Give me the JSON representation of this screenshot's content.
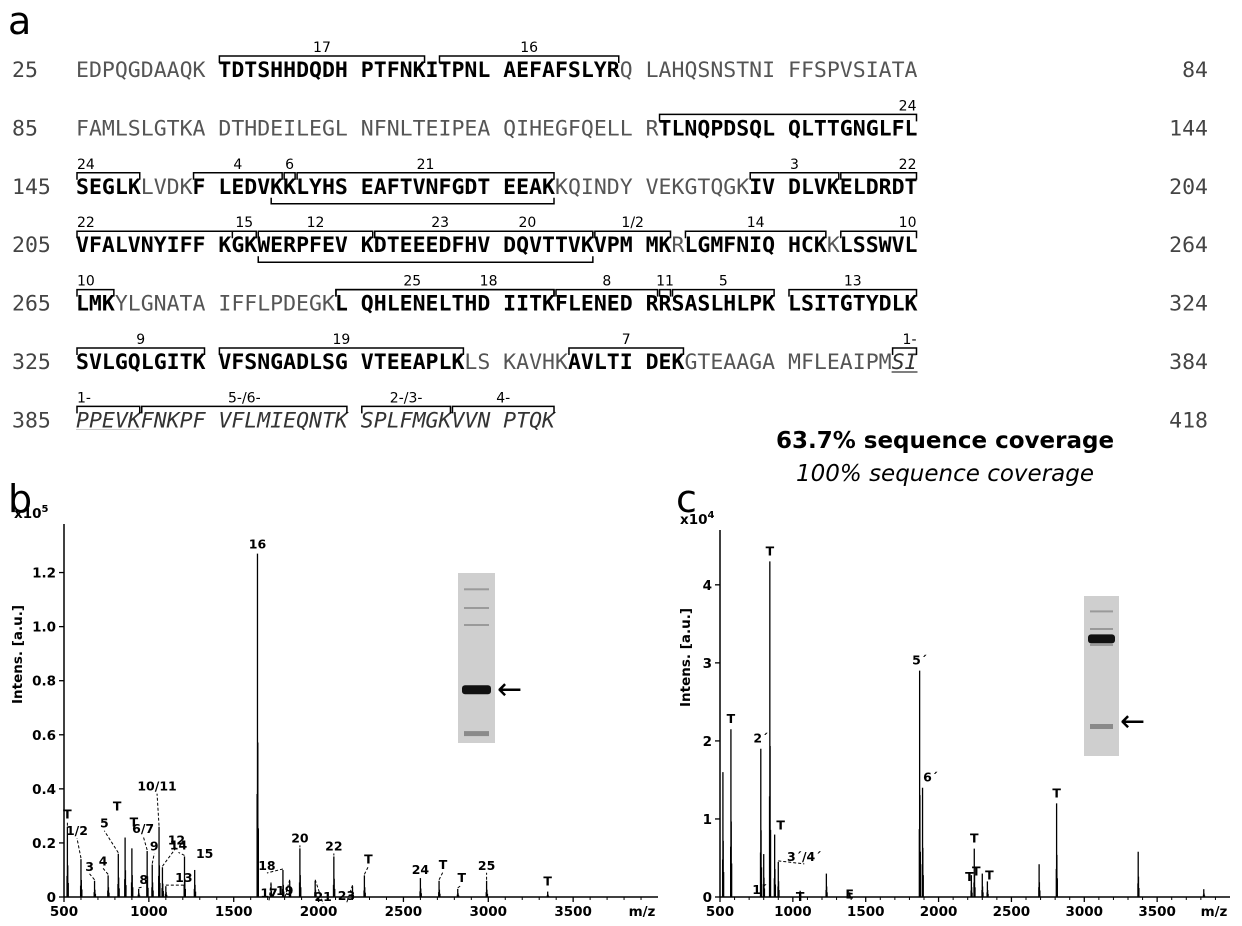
{
  "panel_a": {
    "letter": "a",
    "rows": [
      {
        "start": "25",
        "end": "84",
        "blocks": [
          [
            [
              "EDPQGDAAQK",
              "n"
            ]
          ],
          [
            [
              "TDTSHHDQDH",
              "b"
            ]
          ],
          [
            [
              "PTFNK",
              "b"
            ],
            [
              "ITPNL",
              "b"
            ]
          ],
          [
            [
              "AEFAFSLYR",
              "b"
            ],
            [
              "Q",
              "n"
            ]
          ],
          [
            [
              "LAHQSNSTNI",
              "n"
            ]
          ],
          [
            [
              "FFSPVSIATA",
              "n"
            ]
          ]
        ],
        "brackets": [
          {
            "label": "17",
            "from": 10,
            "to": 24,
            "side": "top"
          },
          {
            "label": "16",
            "from": 26,
            "to": 38,
            "side": "top"
          }
        ]
      },
      {
        "start": "85",
        "end": "144",
        "blocks": [
          [
            [
              "FAMLSLGTKA",
              "n"
            ]
          ],
          [
            [
              "DTHDEILEGL",
              "n"
            ]
          ],
          [
            [
              "NFNLTEIPEA",
              "n"
            ]
          ],
          [
            [
              "QIHEGFQELL",
              "n"
            ]
          ],
          [
            [
              "R",
              "n"
            ],
            [
              "TLNQPDSQL",
              "b"
            ]
          ],
          [
            [
              "QLTTGNGLFL",
              "b"
            ]
          ]
        ],
        "brackets": [
          {
            "label": "24",
            "from": 41,
            "to": 59,
            "side": "top",
            "labelAt": "end"
          }
        ]
      },
      {
        "start": "145",
        "end": "204",
        "blocks": [
          [
            [
              "SEGLK",
              "b"
            ],
            [
              "LVDK",
              "n"
            ],
            [
              "F",
              "b"
            ]
          ],
          [
            [
              "LEDVKKLYHS",
              "b"
            ]
          ],
          [
            [
              "EAFTVNFGDT",
              "b"
            ]
          ],
          [
            [
              "EEAK",
              "b"
            ],
            [
              "KQINDY",
              "n"
            ]
          ],
          [
            [
              "VEKGTQGK",
              "n"
            ],
            [
              "IV",
              "b"
            ]
          ],
          [
            [
              "DLVKELDRDT",
              "b"
            ]
          ]
        ],
        "brackets": [
          {
            "label": "24",
            "from": 0,
            "to": 4,
            "side": "top",
            "labelAt": "start"
          },
          {
            "label": "4",
            "from": 9,
            "to": 14,
            "side": "top"
          },
          {
            "label": "6",
            "from": 15,
            "to": 15,
            "side": "top"
          },
          {
            "label": "21",
            "from": 16,
            "to": 33,
            "side": "top"
          },
          {
            "label": "",
            "from": 14,
            "to": 33,
            "side": "bottom"
          },
          {
            "label": "3",
            "from": 48,
            "to": 53,
            "side": "top"
          },
          {
            "label": "22",
            "from": 54,
            "to": 59,
            "side": "top",
            "labelAt": "end"
          }
        ]
      },
      {
        "start": "205",
        "end": "264",
        "blocks": [
          [
            [
              "VFALVNYIFF",
              "b"
            ]
          ],
          [
            [
              "KGKWERPFEV",
              "b"
            ]
          ],
          [
            [
              "KDTEEEDFHV",
              "b"
            ]
          ],
          [
            [
              "DQVTTVKVPM",
              "b"
            ]
          ],
          [
            [
              "MK",
              "b"
            ],
            [
              "R",
              "n"
            ],
            [
              "LGMFNIQ",
              "b"
            ]
          ],
          [
            [
              "HCK",
              "b"
            ],
            [
              "K",
              "n"
            ],
            [
              "LSSWVL",
              "b"
            ]
          ]
        ],
        "brackets": [
          {
            "label": "22",
            "from": 0,
            "to": 12,
            "side": "top",
            "labelAt": "start"
          },
          {
            "label": "15",
            "from": 11,
            "to": 12,
            "side": "top"
          },
          {
            "label": "12",
            "from": 13,
            "to": 20,
            "side": "top"
          },
          {
            "label": "23",
            "from": 21,
            "to": 36,
            "side": "top",
            "labelPos": 0.3
          },
          {
            "label": "20",
            "from": 21,
            "to": 36,
            "side": "top",
            "labelPos": 0.7
          },
          {
            "label": "1/2",
            "from": 37,
            "to": 41,
            "side": "top"
          },
          {
            "label": "14",
            "from": 43,
            "to": 52,
            "side": "top"
          },
          {
            "label": "10",
            "from": 54,
            "to": 59,
            "side": "top",
            "labelAt": "end"
          },
          {
            "label": "",
            "from": 13,
            "to": 36,
            "side": "bottom"
          }
        ]
      },
      {
        "start": "265",
        "end": "324",
        "blocks": [
          [
            [
              "LMK",
              "b"
            ],
            [
              "YLGNATA",
              "n"
            ]
          ],
          [
            [
              "IFFLPDEGK",
              "n"
            ],
            [
              "L",
              "b"
            ]
          ],
          [
            [
              "QHLENELTHD",
              "b"
            ]
          ],
          [
            [
              "IITKFLENED",
              "b"
            ]
          ],
          [
            [
              "RRSASLHLPK",
              "b"
            ]
          ],
          [
            [
              "LSITGTYDLK",
              "b"
            ]
          ]
        ],
        "brackets": [
          {
            "label": "10",
            "from": 0,
            "to": 2,
            "side": "top",
            "labelAt": "start"
          },
          {
            "label": "25",
            "from": 19,
            "to": 33,
            "side": "top",
            "labelPos": 0.35
          },
          {
            "label": "18",
            "from": 19,
            "to": 33,
            "side": "top",
            "labelPos": 0.7
          },
          {
            "label": "8",
            "from": 34,
            "to": 40,
            "side": "top"
          },
          {
            "label": "11",
            "from": 41,
            "to": 41,
            "side": "top"
          },
          {
            "label": "5",
            "from": 42,
            "to": 49,
            "side": "top"
          },
          {
            "label": "13",
            "from": 50,
            "to": 59,
            "side": "top"
          }
        ]
      },
      {
        "start": "325",
        "end": "384",
        "blocks": [
          [
            [
              "SVLGQLGITK",
              "b"
            ]
          ],
          [
            [
              "VFSNGADLSG",
              "b"
            ]
          ],
          [
            [
              "VTEEAPLK",
              "b"
            ],
            [
              "LS",
              "n"
            ]
          ],
          [
            [
              "KAVHK",
              "n"
            ],
            [
              "AVLTI",
              "b"
            ]
          ],
          [
            [
              "DEK",
              "b"
            ],
            [
              "GTEAAGA",
              "n"
            ]
          ],
          [
            [
              "MFLEAIPM",
              "n"
            ],
            [
              "SI",
              "iu"
            ]
          ]
        ],
        "brackets": [
          {
            "label": "9",
            "from": 0,
            "to": 9,
            "side": "top"
          },
          {
            "label": "19",
            "from": 10,
            "to": 27,
            "side": "top"
          },
          {
            "label": "7",
            "from": 35,
            "to": 42,
            "side": "top"
          },
          {
            "label": "1-",
            "from": 58,
            "to": 59,
            "side": "top",
            "labelAt": "end"
          }
        ]
      },
      {
        "start": "385",
        "end": "418",
        "blocks": [
          [
            [
              "PPEVK",
              "iu"
            ],
            [
              "FNKPF",
              "i"
            ]
          ],
          [
            [
              "VFLMIEQNTK",
              "i"
            ]
          ],
          [
            [
              "SPLFMGKVVN",
              "i"
            ]
          ],
          [
            [
              "PTQK",
              "i"
            ]
          ]
        ],
        "brackets": [
          {
            "label": "1-",
            "from": 0,
            "to": 4,
            "side": "top",
            "labelAt": "start"
          },
          {
            "label": "5-/6-",
            "from": 5,
            "to": 19,
            "side": "top"
          },
          {
            "label": "2-/3-",
            "from": 20,
            "to": 26,
            "side": "top"
          },
          {
            "label": "4-",
            "from": 27,
            "to": 33,
            "side": "top"
          }
        ]
      }
    ],
    "coverage_native": "63.7% sequence coverage",
    "coverage_total": "100% sequence coverage"
  },
  "panel_b": {
    "letter": "b",
    "y_label": "Intens. [a.u.]",
    "y_multiplier": "x10",
    "y_exponent": "5",
    "x_label": "m/z",
    "arrow": "←"
  },
  "panel_c": {
    "letter": "c",
    "y_label": "Intens. [a.u.]",
    "y_multiplier": "x10",
    "y_exponent": "4",
    "x_label": "m/z",
    "arrow": "←"
  },
  "chart_data": [
    {
      "type": "line",
      "panel": "b",
      "ylabel": "Intens. [a.u.]",
      "y_scale": "x10^5",
      "xlabel": "m/z",
      "xlim": [
        500,
        4000
      ],
      "ylim": [
        0,
        1.35
      ],
      "x_ticks": [
        "500",
        "1000",
        "1500",
        "2000",
        "2500",
        "3000",
        "3500"
      ],
      "y_ticks": [
        "0",
        "0.2",
        "0.4",
        "0.6",
        "0.8",
        "1.0",
        "1.2"
      ],
      "peaks": [
        {
          "mz": 520,
          "i": 0.26,
          "label": "T"
        },
        {
          "mz": 600,
          "i": 0.14,
          "label": "1/2"
        },
        {
          "mz": 680,
          "i": 0.06,
          "label": "3"
        },
        {
          "mz": 760,
          "i": 0.08,
          "label": "4"
        },
        {
          "mz": 820,
          "i": 0.16,
          "label": "5"
        },
        {
          "mz": 860,
          "i": 0.22,
          "label": "T"
        },
        {
          "mz": 900,
          "i": 0.18,
          "label": "T"
        },
        {
          "mz": 940,
          "i": 0.03,
          "label": "8"
        },
        {
          "mz": 990,
          "i": 0.17,
          "label": "6/7"
        },
        {
          "mz": 1020,
          "i": 0.12,
          "label": "9"
        },
        {
          "mz": 1060,
          "i": 0.26,
          "label": "10/11"
        },
        {
          "mz": 1080,
          "i": 0.11,
          "label": "12"
        },
        {
          "mz": 1100,
          "i": 0.04,
          "label": "13"
        },
        {
          "mz": 1210,
          "i": 0.15,
          "label": "14"
        },
        {
          "mz": 1270,
          "i": 0.1,
          "label": "15"
        },
        {
          "mz": 1640,
          "i": 1.27,
          "label": "16"
        },
        {
          "mz": 1720,
          "i": 0.05,
          "label": "17"
        },
        {
          "mz": 1790,
          "i": 0.1,
          "label": "18"
        },
        {
          "mz": 1830,
          "i": 0.06,
          "label": "19"
        },
        {
          "mz": 1890,
          "i": 0.18,
          "label": "20"
        },
        {
          "mz": 1980,
          "i": 0.06,
          "label": "21"
        },
        {
          "mz": 2090,
          "i": 0.15,
          "label": "22"
        },
        {
          "mz": 2200,
          "i": 0.04,
          "label": "23"
        },
        {
          "mz": 2270,
          "i": 0.08,
          "label": "T"
        },
        {
          "mz": 2600,
          "i": 0.07,
          "label": "24"
        },
        {
          "mz": 2710,
          "i": 0.06,
          "label": "T"
        },
        {
          "mz": 2820,
          "i": 0.03,
          "label": "T"
        },
        {
          "mz": 2990,
          "i": 0.06,
          "label": "25"
        },
        {
          "mz": 3350,
          "i": 0.02,
          "label": "T"
        }
      ]
    },
    {
      "type": "line",
      "panel": "c",
      "ylabel": "Intens. [a.u.]",
      "y_scale": "x10^4",
      "xlabel": "m/z",
      "xlim": [
        500,
        4000
      ],
      "ylim": [
        0,
        4.6
      ],
      "x_ticks": [
        "500",
        "1000",
        "1500",
        "2000",
        "2500",
        "3000",
        "3500"
      ],
      "y_ticks": [
        "0",
        "1",
        "2",
        "3",
        "4"
      ],
      "peaks": [
        {
          "mz": 520,
          "i": 1.6,
          "label": ""
        },
        {
          "mz": 575,
          "i": 2.15,
          "label": "T"
        },
        {
          "mz": 780,
          "i": 1.9,
          "label": "2´"
        },
        {
          "mz": 800,
          "i": 0.55,
          "label": "1´"
        },
        {
          "mz": 842,
          "i": 4.3,
          "label": "T"
        },
        {
          "mz": 875,
          "i": 0.8,
          "label": "T"
        },
        {
          "mz": 900,
          "i": 0.45,
          "label": "3´/4´"
        },
        {
          "mz": 1050,
          "i": 0.08,
          "label": "T"
        },
        {
          "mz": 1230,
          "i": 0.3,
          "label": ""
        },
        {
          "mz": 1390,
          "i": 0.06,
          "label": "E"
        },
        {
          "mz": 1870,
          "i": 2.9,
          "label": "5´"
        },
        {
          "mz": 1890,
          "i": 1.4,
          "label": "6´"
        },
        {
          "mz": 2225,
          "i": 0.28,
          "label": "T"
        },
        {
          "mz": 2245,
          "i": 0.62,
          "label": "T"
        },
        {
          "mz": 2300,
          "i": 0.3,
          "label": "T"
        },
        {
          "mz": 2335,
          "i": 0.2,
          "label": "T"
        },
        {
          "mz": 2690,
          "i": 0.42,
          "label": ""
        },
        {
          "mz": 2810,
          "i": 1.2,
          "label": "T"
        },
        {
          "mz": 3370,
          "i": 0.58,
          "label": ""
        },
        {
          "mz": 3820,
          "i": 0.1,
          "label": ""
        }
      ]
    }
  ]
}
